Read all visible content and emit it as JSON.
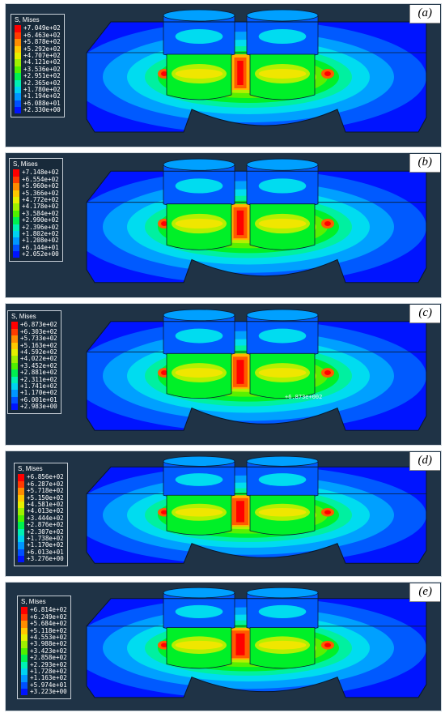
{
  "colormap": [
    "#ff0000",
    "#ff5a00",
    "#ffb400",
    "#f0e600",
    "#b4f000",
    "#5af000",
    "#00f028",
    "#00f0a0",
    "#00dcf0",
    "#00a0ff",
    "#005aff",
    "#0014ff"
  ],
  "panels": [
    {
      "label": "(a)",
      "legend_title": "S, Mises",
      "legend_values": [
        "+7.049e+02",
        "+6.463e+02",
        "+5.878e+02",
        "+5.292e+02",
        "+4.707e+02",
        "+4.121e+02",
        "+3.536e+02",
        "+2.951e+02",
        "+2.365e+02",
        "+1.780e+02",
        "+1.194e+02",
        "+6.088e+01",
        "+2.330e+00"
      ],
      "probe_text": ""
    },
    {
      "label": "(b)",
      "legend_title": "S, Mises",
      "legend_values": [
        "+7.148e+02",
        "+6.554e+02",
        "+5.960e+02",
        "+5.366e+02",
        "+4.772e+02",
        "+4.178e+02",
        "+3.584e+02",
        "+2.990e+02",
        "+2.396e+02",
        "+1.802e+02",
        "+1.208e+02",
        "+6.144e+01",
        "+2.052e+00"
      ],
      "probe_text": ""
    },
    {
      "label": "(c)",
      "legend_title": "S, Mises",
      "legend_values": [
        "+6.873e+02",
        "+6.303e+02",
        "+5.733e+02",
        "+5.163e+02",
        "+4.592e+02",
        "+4.022e+02",
        "+3.452e+02",
        "+2.881e+02",
        "+2.311e+02",
        "+1.741e+02",
        "+1.170e+02",
        "+6.001e+01",
        "+2.983e+00"
      ],
      "probe_text": "+6.873e+002"
    },
    {
      "label": "(d)",
      "legend_title": "S, Mises",
      "legend_values": [
        "+6.856e+02",
        "+6.287e+02",
        "+5.718e+02",
        "+5.150e+02",
        "+4.581e+02",
        "+4.013e+02",
        "+3.444e+02",
        "+2.876e+02",
        "+2.307e+02",
        "+1.738e+02",
        "+1.170e+02",
        "+6.013e+01",
        "+3.276e+00"
      ],
      "probe_text": ""
    },
    {
      "label": "(e)",
      "legend_title": "S, Mises",
      "legend_values": [
        "+6.814e+02",
        "+6.249e+02",
        "+5.684e+02",
        "+5.118e+02",
        "+4.553e+02",
        "+3.988e+02",
        "+3.423e+02",
        "+2.858e+02",
        "+2.293e+02",
        "+1.728e+02",
        "+1.163e+02",
        "+5.974e+01",
        "+3.223e+00"
      ],
      "probe_text": ""
    }
  ]
}
